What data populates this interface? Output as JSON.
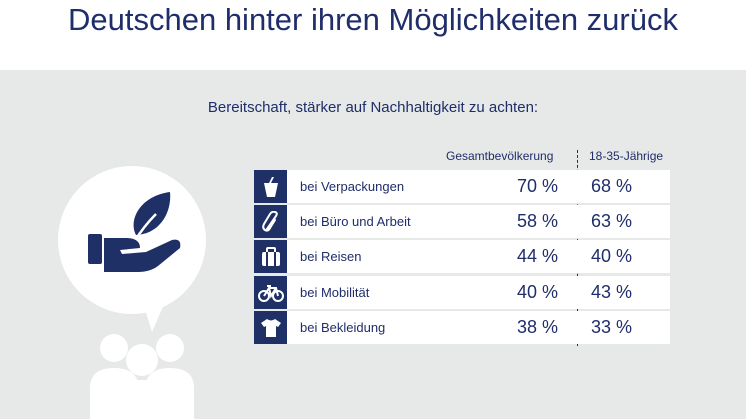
{
  "headline": "Deutschen hinter ihren Möglichkeiten zurück",
  "chart_data": {
    "type": "table",
    "title": "Bereitschaft, stärker auf Nachhaltigkeit zu achten:",
    "columns": [
      "Gesamtbevölkerung",
      "18-35-Jährige"
    ],
    "rows": [
      {
        "label": "bei Verpackungen",
        "icon": "yogurt-cup-icon",
        "total": "70 %",
        "young": "68 %"
      },
      {
        "label": "bei Büro und Arbeit",
        "icon": "paperclip-icon",
        "total": "58 %",
        "young": "63 %"
      },
      {
        "label": "bei Reisen",
        "icon": "suitcase-icon",
        "total": "44 %",
        "young": "40 %"
      },
      {
        "label": "bei Mobilität",
        "icon": "bicycle-icon",
        "total": "40 %",
        "young": "43 %"
      },
      {
        "label": "bei Bekleidung",
        "icon": "tshirt-icon",
        "total": "38 %",
        "young": "33 %"
      }
    ],
    "series": [
      {
        "name": "Gesamtbevölkerung",
        "values": [
          70,
          58,
          44,
          40,
          38
        ]
      },
      {
        "name": "18-35-Jährige",
        "values": [
          68,
          63,
          40,
          43,
          33
        ]
      }
    ],
    "unit": "%"
  },
  "colors": {
    "navy": "#1f2d6b",
    "icon_bg": "#1f3067",
    "panel_bg": "#e6e9e7",
    "row_bg": "#ffffff"
  }
}
